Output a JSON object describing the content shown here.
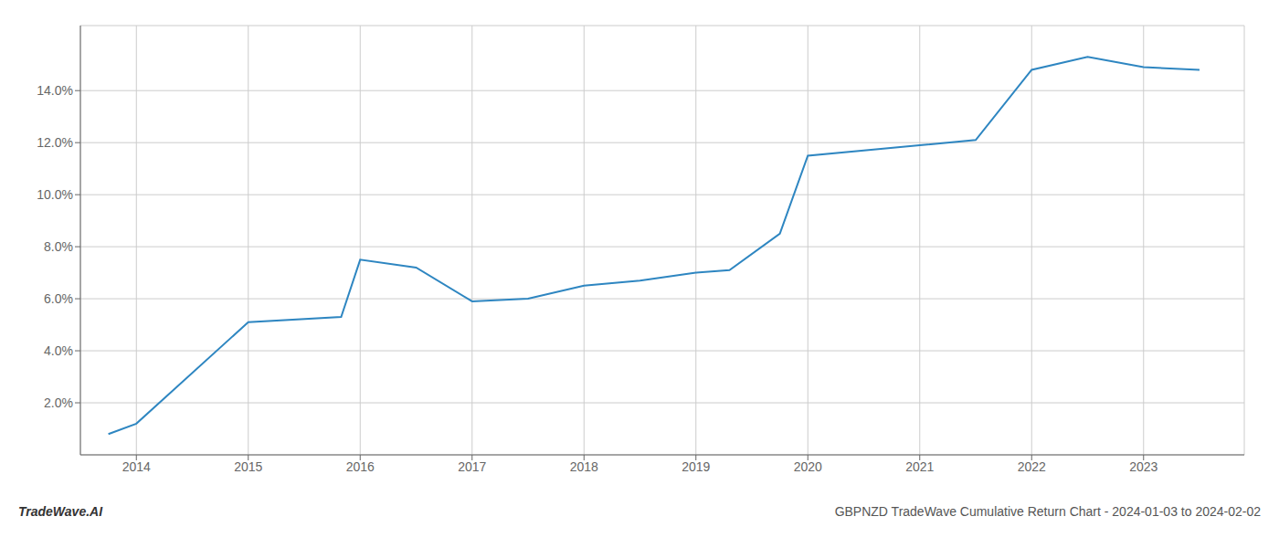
{
  "chart_data": {
    "type": "line",
    "title": "GBPNZD TradeWave Cumulative Return Chart - 2024-01-03 to 2024-02-02",
    "annotations": [
      "TradeWave.AI"
    ],
    "x": [
      2013.75,
      2014.0,
      2015.0,
      2015.83,
      2016.0,
      2016.5,
      2017.0,
      2017.5,
      2018.0,
      2018.5,
      2019.0,
      2019.3,
      2019.75,
      2020.0,
      2020.5,
      2021.0,
      2021.5,
      2022.0,
      2022.5,
      2023.0,
      2023.5
    ],
    "values": [
      0.008,
      0.012,
      0.051,
      0.053,
      0.075,
      0.072,
      0.059,
      0.06,
      0.065,
      0.067,
      0.07,
      0.071,
      0.085,
      0.115,
      0.117,
      0.119,
      0.121,
      0.148,
      0.153,
      0.149,
      0.148
    ],
    "color": "#2e86c1",
    "xlim": [
      2013.5,
      2023.9
    ],
    "xticks": [
      2014,
      2015,
      2016,
      2017,
      2018,
      2019,
      2020,
      2021,
      2022,
      2023
    ],
    "ylim": [
      0.0,
      0.165
    ],
    "yticks": [
      {
        "value": 0.02,
        "label": "2.0%"
      },
      {
        "value": 0.04,
        "label": "4.0%"
      },
      {
        "value": 0.06,
        "label": "6.0%"
      },
      {
        "value": 0.08,
        "label": "8.0%"
      },
      {
        "value": 0.1,
        "label": "10.0%"
      },
      {
        "value": 0.12,
        "label": "12.0%"
      },
      {
        "value": 0.14,
        "label": "14.0%"
      }
    ],
    "grid": true
  }
}
